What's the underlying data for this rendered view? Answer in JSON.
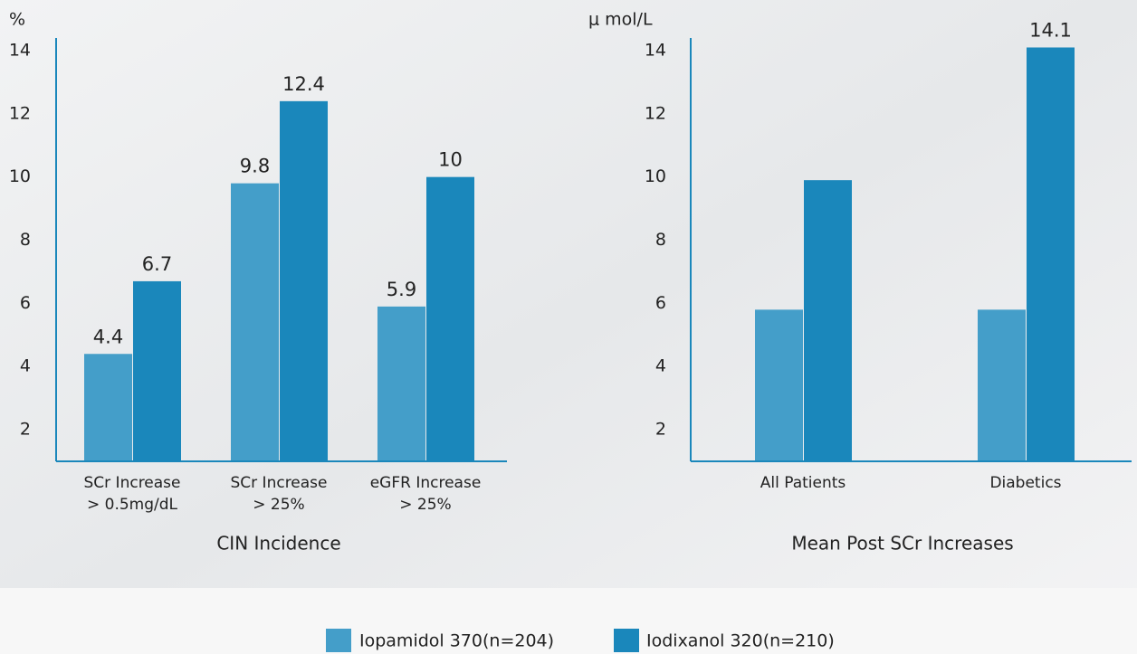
{
  "chart_data": [
    {
      "type": "bar",
      "y_unit": "%",
      "xlabel": "CIN Incidence",
      "categories": [
        [
          "SCr Increase",
          "> 0.5mg/dL"
        ],
        [
          "SCr Increase",
          "> 25%"
        ],
        [
          "eGFR Increase",
          "> 25%"
        ]
      ],
      "series": [
        {
          "name": "Iopamidol 370(n=204)",
          "color": "#449ec9",
          "values": [
            4.4,
            9.8,
            5.9
          ]
        },
        {
          "name": "Iodixanol 320(n=210)",
          "color": "#1a87bb",
          "values": [
            6.7,
            12.4,
            10
          ]
        }
      ],
      "show_values": true,
      "ylim": [
        1,
        14.4
      ],
      "yticks": [
        2,
        4,
        6,
        8,
        10,
        12,
        14
      ]
    },
    {
      "type": "bar",
      "y_unit": "μ mol/L",
      "xlabel": "Mean Post SCr Increases",
      "categories": [
        [
          "All Patients"
        ],
        [
          "Diabetics"
        ]
      ],
      "series": [
        {
          "color": "#449ec9",
          "values": [
            5.8,
            5.8
          ]
        },
        {
          "color": "#1a87bb",
          "values": [
            9.9,
            14.1
          ],
          "value_labels": [
            null,
            "14.1"
          ]
        }
      ],
      "show_values": false,
      "ylim": [
        1,
        14.4
      ],
      "yticks": [
        2,
        4,
        6,
        8,
        10,
        12,
        14
      ]
    }
  ]
}
